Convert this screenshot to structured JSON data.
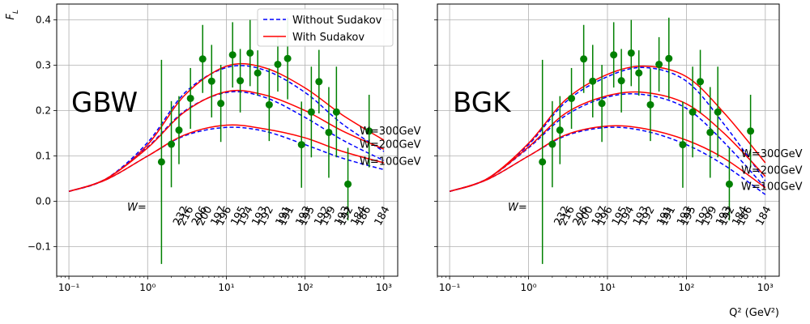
{
  "chart_data": [
    {
      "type": "line",
      "panel_label": "GBW",
      "ylabel": "F_L",
      "xlabel": "",
      "xscale": "log",
      "xlim": [
        0.07,
        1500
      ],
      "ylim": [
        -0.165,
        0.435
      ],
      "xticks": [
        0.1,
        1,
        10,
        100,
        1000
      ],
      "xtick_labels": [
        "10⁻¹",
        "10⁰",
        "10¹",
        "10²",
        "10³"
      ],
      "yticks": [
        -0.1,
        0.0,
        0.1,
        0.2,
        0.3,
        0.4
      ],
      "ytick_labels": [
        "−0.1",
        "0.0",
        "0.1",
        "0.2",
        "0.3",
        "0.4"
      ],
      "grid": true,
      "legend": {
        "placement": "top-right",
        "entries": [
          {
            "label": "Without Sudakov",
            "color": "#0000ff",
            "style": "dashed"
          },
          {
            "label": "With Sudakov",
            "color": "#ff0000",
            "style": "solid"
          }
        ]
      },
      "curve_x": [
        0.1,
        0.3,
        1,
        3,
        10,
        30,
        100,
        300,
        1000
      ],
      "series": [
        {
          "name": "Without Sudakov",
          "group": "W=300GeV",
          "color": "#0000ff",
          "style": "dashed",
          "values": [
            0.022,
            0.05,
            0.13,
            0.24,
            0.295,
            0.29,
            0.24,
            0.17,
            0.11
          ]
        },
        {
          "name": "With Sudakov",
          "group": "W=300GeV",
          "color": "#ff0000",
          "style": "solid",
          "values": [
            0.022,
            0.05,
            0.125,
            0.235,
            0.298,
            0.295,
            0.25,
            0.19,
            0.135
          ]
        },
        {
          "name": "Without Sudakov",
          "group": "W=200GeV",
          "color": "#0000ff",
          "style": "dashed",
          "values": [
            0.022,
            0.05,
            0.12,
            0.2,
            0.24,
            0.23,
            0.185,
            0.135,
            0.09
          ]
        },
        {
          "name": "With Sudakov",
          "group": "W=200GeV",
          "color": "#ff0000",
          "style": "solid",
          "values": [
            0.022,
            0.05,
            0.118,
            0.198,
            0.242,
            0.235,
            0.2,
            0.155,
            0.115
          ]
        },
        {
          "name": "Without Sudakov",
          "group": "W=100GeV",
          "color": "#0000ff",
          "style": "dashed",
          "values": [
            0.022,
            0.048,
            0.1,
            0.145,
            0.163,
            0.155,
            0.125,
            0.095,
            0.07
          ]
        },
        {
          "name": "With Sudakov",
          "group": "W=100GeV",
          "color": "#ff0000",
          "style": "solid",
          "values": [
            0.022,
            0.048,
            0.1,
            0.147,
            0.168,
            0.16,
            0.14,
            0.11,
            0.085
          ]
        }
      ],
      "w_labels": [
        {
          "text": "W=300GeV",
          "y": 0.155
        },
        {
          "text": "W=200GeV",
          "y": 0.125
        },
        {
          "text": "W=100GeV",
          "y": 0.088
        }
      ],
      "data_points": {
        "color": "#008000",
        "points": [
          {
            "x": 1.5,
            "y": 0.087,
            "err": 0.225
          },
          {
            "x": 2.0,
            "y": 0.126,
            "err": 0.095
          },
          {
            "x": 2.5,
            "y": 0.157,
            "err": 0.075
          },
          {
            "x": 3.5,
            "y": 0.227,
            "err": 0.067
          },
          {
            "x": 5.0,
            "y": 0.314,
            "err": 0.075
          },
          {
            "x": 6.5,
            "y": 0.265,
            "err": 0.08
          },
          {
            "x": 8.5,
            "y": 0.216,
            "err": 0.085
          },
          {
            "x": 12,
            "y": 0.323,
            "err": 0.072
          },
          {
            "x": 15,
            "y": 0.266,
            "err": 0.07
          },
          {
            "x": 20,
            "y": 0.327,
            "err": 0.073
          },
          {
            "x": 25,
            "y": 0.283,
            "err": 0.05
          },
          {
            "x": 35,
            "y": 0.213,
            "err": 0.08
          },
          {
            "x": 45,
            "y": 0.302,
            "err": 0.06
          },
          {
            "x": 60,
            "y": 0.315,
            "err": 0.09
          },
          {
            "x": 90,
            "y": 0.125,
            "err": 0.095
          },
          {
            "x": 120,
            "y": 0.197,
            "err": 0.1
          },
          {
            "x": 150,
            "y": 0.264,
            "err": 0.07
          },
          {
            "x": 200,
            "y": 0.152,
            "err": 0.1
          },
          {
            "x": 250,
            "y": 0.197,
            "err": 0.1
          },
          {
            "x": 350,
            "y": 0.038,
            "err": 0.08
          },
          {
            "x": 650,
            "y": 0.155,
            "err": 0.08
          }
        ]
      },
      "w_prefix": "W=",
      "w_values": [
        {
          "text": "232",
          "x": 2.5
        },
        {
          "text": "216",
          "x": 2.9
        },
        {
          "text": "206",
          "x": 4.3
        },
        {
          "text": "200",
          "x": 5.0
        },
        {
          "text": "197",
          "x": 7.5
        },
        {
          "text": "196",
          "x": 8.8
        },
        {
          "text": "195",
          "x": 13.5
        },
        {
          "text": "194",
          "x": 16.5
        },
        {
          "text": "193",
          "x": 25
        },
        {
          "text": "192",
          "x": 30
        },
        {
          "text": "191",
          "x": 50
        },
        {
          "text": "191",
          "x": 55
        },
        {
          "text": "193",
          "x": 90
        },
        {
          "text": "195",
          "x": 100
        },
        {
          "text": "192",
          "x": 155
        },
        {
          "text": "199",
          "x": 185
        },
        {
          "text": "193",
          "x": 280
        },
        {
          "text": "192",
          "x": 310
        },
        {
          "text": "184",
          "x": 450
        },
        {
          "text": "186",
          "x": 520
        },
        {
          "text": "184",
          "x": 900
        }
      ]
    },
    {
      "type": "line",
      "panel_label": "BGK",
      "ylabel": "",
      "xlabel": "Q² (GeV²)",
      "xscale": "log",
      "xlim": [
        0.07,
        1500
      ],
      "ylim": [
        -0.165,
        0.435
      ],
      "xticks": [
        0.1,
        1,
        10,
        100,
        1000
      ],
      "xtick_labels": [
        "10⁻¹",
        "10⁰",
        "10¹",
        "10²",
        "10³"
      ],
      "yticks": [
        -0.1,
        0.0,
        0.1,
        0.2,
        0.3,
        0.4
      ],
      "ytick_labels": [],
      "grid": true,
      "curve_x": [
        0.1,
        0.3,
        1,
        3,
        10,
        30,
        100,
        300,
        1000
      ],
      "series": [
        {
          "name": "Without Sudakov",
          "group": "W=300GeV",
          "color": "#0000ff",
          "style": "dashed",
          "values": [
            0.022,
            0.05,
            0.125,
            0.22,
            0.275,
            0.295,
            0.265,
            0.17,
            0.045
          ]
        },
        {
          "name": "With Sudakov",
          "group": "W=300GeV",
          "color": "#ff0000",
          "style": "solid",
          "values": [
            0.022,
            0.05,
            0.128,
            0.225,
            0.28,
            0.298,
            0.275,
            0.195,
            0.085
          ]
        },
        {
          "name": "Without Sudakov",
          "group": "W=200GeV",
          "color": "#0000ff",
          "style": "dashed",
          "values": [
            0.022,
            0.05,
            0.118,
            0.19,
            0.23,
            0.235,
            0.205,
            0.13,
            0.03
          ]
        },
        {
          "name": "With Sudakov",
          "group": "W=200GeV",
          "color": "#ff0000",
          "style": "solid",
          "values": [
            0.022,
            0.05,
            0.12,
            0.195,
            0.233,
            0.24,
            0.215,
            0.15,
            0.055
          ]
        },
        {
          "name": "Without Sudakov",
          "group": "W=100GeV",
          "color": "#0000ff",
          "style": "dashed",
          "values": [
            0.022,
            0.048,
            0.1,
            0.145,
            0.163,
            0.155,
            0.125,
            0.08,
            0.015
          ]
        },
        {
          "name": "With Sudakov",
          "group": "W=100GeV",
          "color": "#ff0000",
          "style": "solid",
          "values": [
            0.022,
            0.048,
            0.1,
            0.147,
            0.166,
            0.16,
            0.135,
            0.095,
            0.03
          ]
        }
      ],
      "w_labels": [
        {
          "text": "W=300GeV",
          "y": 0.105
        },
        {
          "text": "W=200GeV",
          "y": 0.068
        },
        {
          "text": "W=100GeV",
          "y": 0.032
        }
      ],
      "data_points": {
        "color": "#008000",
        "points": [
          {
            "x": 1.5,
            "y": 0.087,
            "err": 0.225
          },
          {
            "x": 2.0,
            "y": 0.126,
            "err": 0.095
          },
          {
            "x": 2.5,
            "y": 0.157,
            "err": 0.075
          },
          {
            "x": 3.5,
            "y": 0.227,
            "err": 0.067
          },
          {
            "x": 5.0,
            "y": 0.314,
            "err": 0.075
          },
          {
            "x": 6.5,
            "y": 0.265,
            "err": 0.08
          },
          {
            "x": 8.5,
            "y": 0.216,
            "err": 0.085
          },
          {
            "x": 12,
            "y": 0.323,
            "err": 0.072
          },
          {
            "x": 15,
            "y": 0.266,
            "err": 0.07
          },
          {
            "x": 20,
            "y": 0.327,
            "err": 0.073
          },
          {
            "x": 25,
            "y": 0.283,
            "err": 0.05
          },
          {
            "x": 35,
            "y": 0.213,
            "err": 0.08
          },
          {
            "x": 45,
            "y": 0.302,
            "err": 0.06
          },
          {
            "x": 60,
            "y": 0.315,
            "err": 0.09
          },
          {
            "x": 90,
            "y": 0.125,
            "err": 0.095
          },
          {
            "x": 120,
            "y": 0.197,
            "err": 0.1
          },
          {
            "x": 150,
            "y": 0.264,
            "err": 0.07
          },
          {
            "x": 200,
            "y": 0.152,
            "err": 0.1
          },
          {
            "x": 250,
            "y": 0.197,
            "err": 0.1
          },
          {
            "x": 350,
            "y": 0.038,
            "err": 0.08
          },
          {
            "x": 650,
            "y": 0.155,
            "err": 0.08
          }
        ]
      },
      "w_prefix": "W=",
      "w_values": [
        {
          "text": "232",
          "x": 2.5
        },
        {
          "text": "216",
          "x": 2.9
        },
        {
          "text": "206",
          "x": 4.3
        },
        {
          "text": "200",
          "x": 5.0
        },
        {
          "text": "197",
          "x": 7.5
        },
        {
          "text": "196",
          "x": 8.8
        },
        {
          "text": "195",
          "x": 13.5
        },
        {
          "text": "194",
          "x": 16.5
        },
        {
          "text": "193",
          "x": 25
        },
        {
          "text": "192",
          "x": 30
        },
        {
          "text": "191",
          "x": 50
        },
        {
          "text": "191",
          "x": 55
        },
        {
          "text": "193",
          "x": 90
        },
        {
          "text": "195",
          "x": 100
        },
        {
          "text": "192",
          "x": 155
        },
        {
          "text": "199",
          "x": 185
        },
        {
          "text": "193",
          "x": 280
        },
        {
          "text": "192",
          "x": 310
        },
        {
          "text": "184",
          "x": 450
        },
        {
          "text": "186",
          "x": 520
        },
        {
          "text": "184",
          "x": 900
        }
      ]
    }
  ]
}
